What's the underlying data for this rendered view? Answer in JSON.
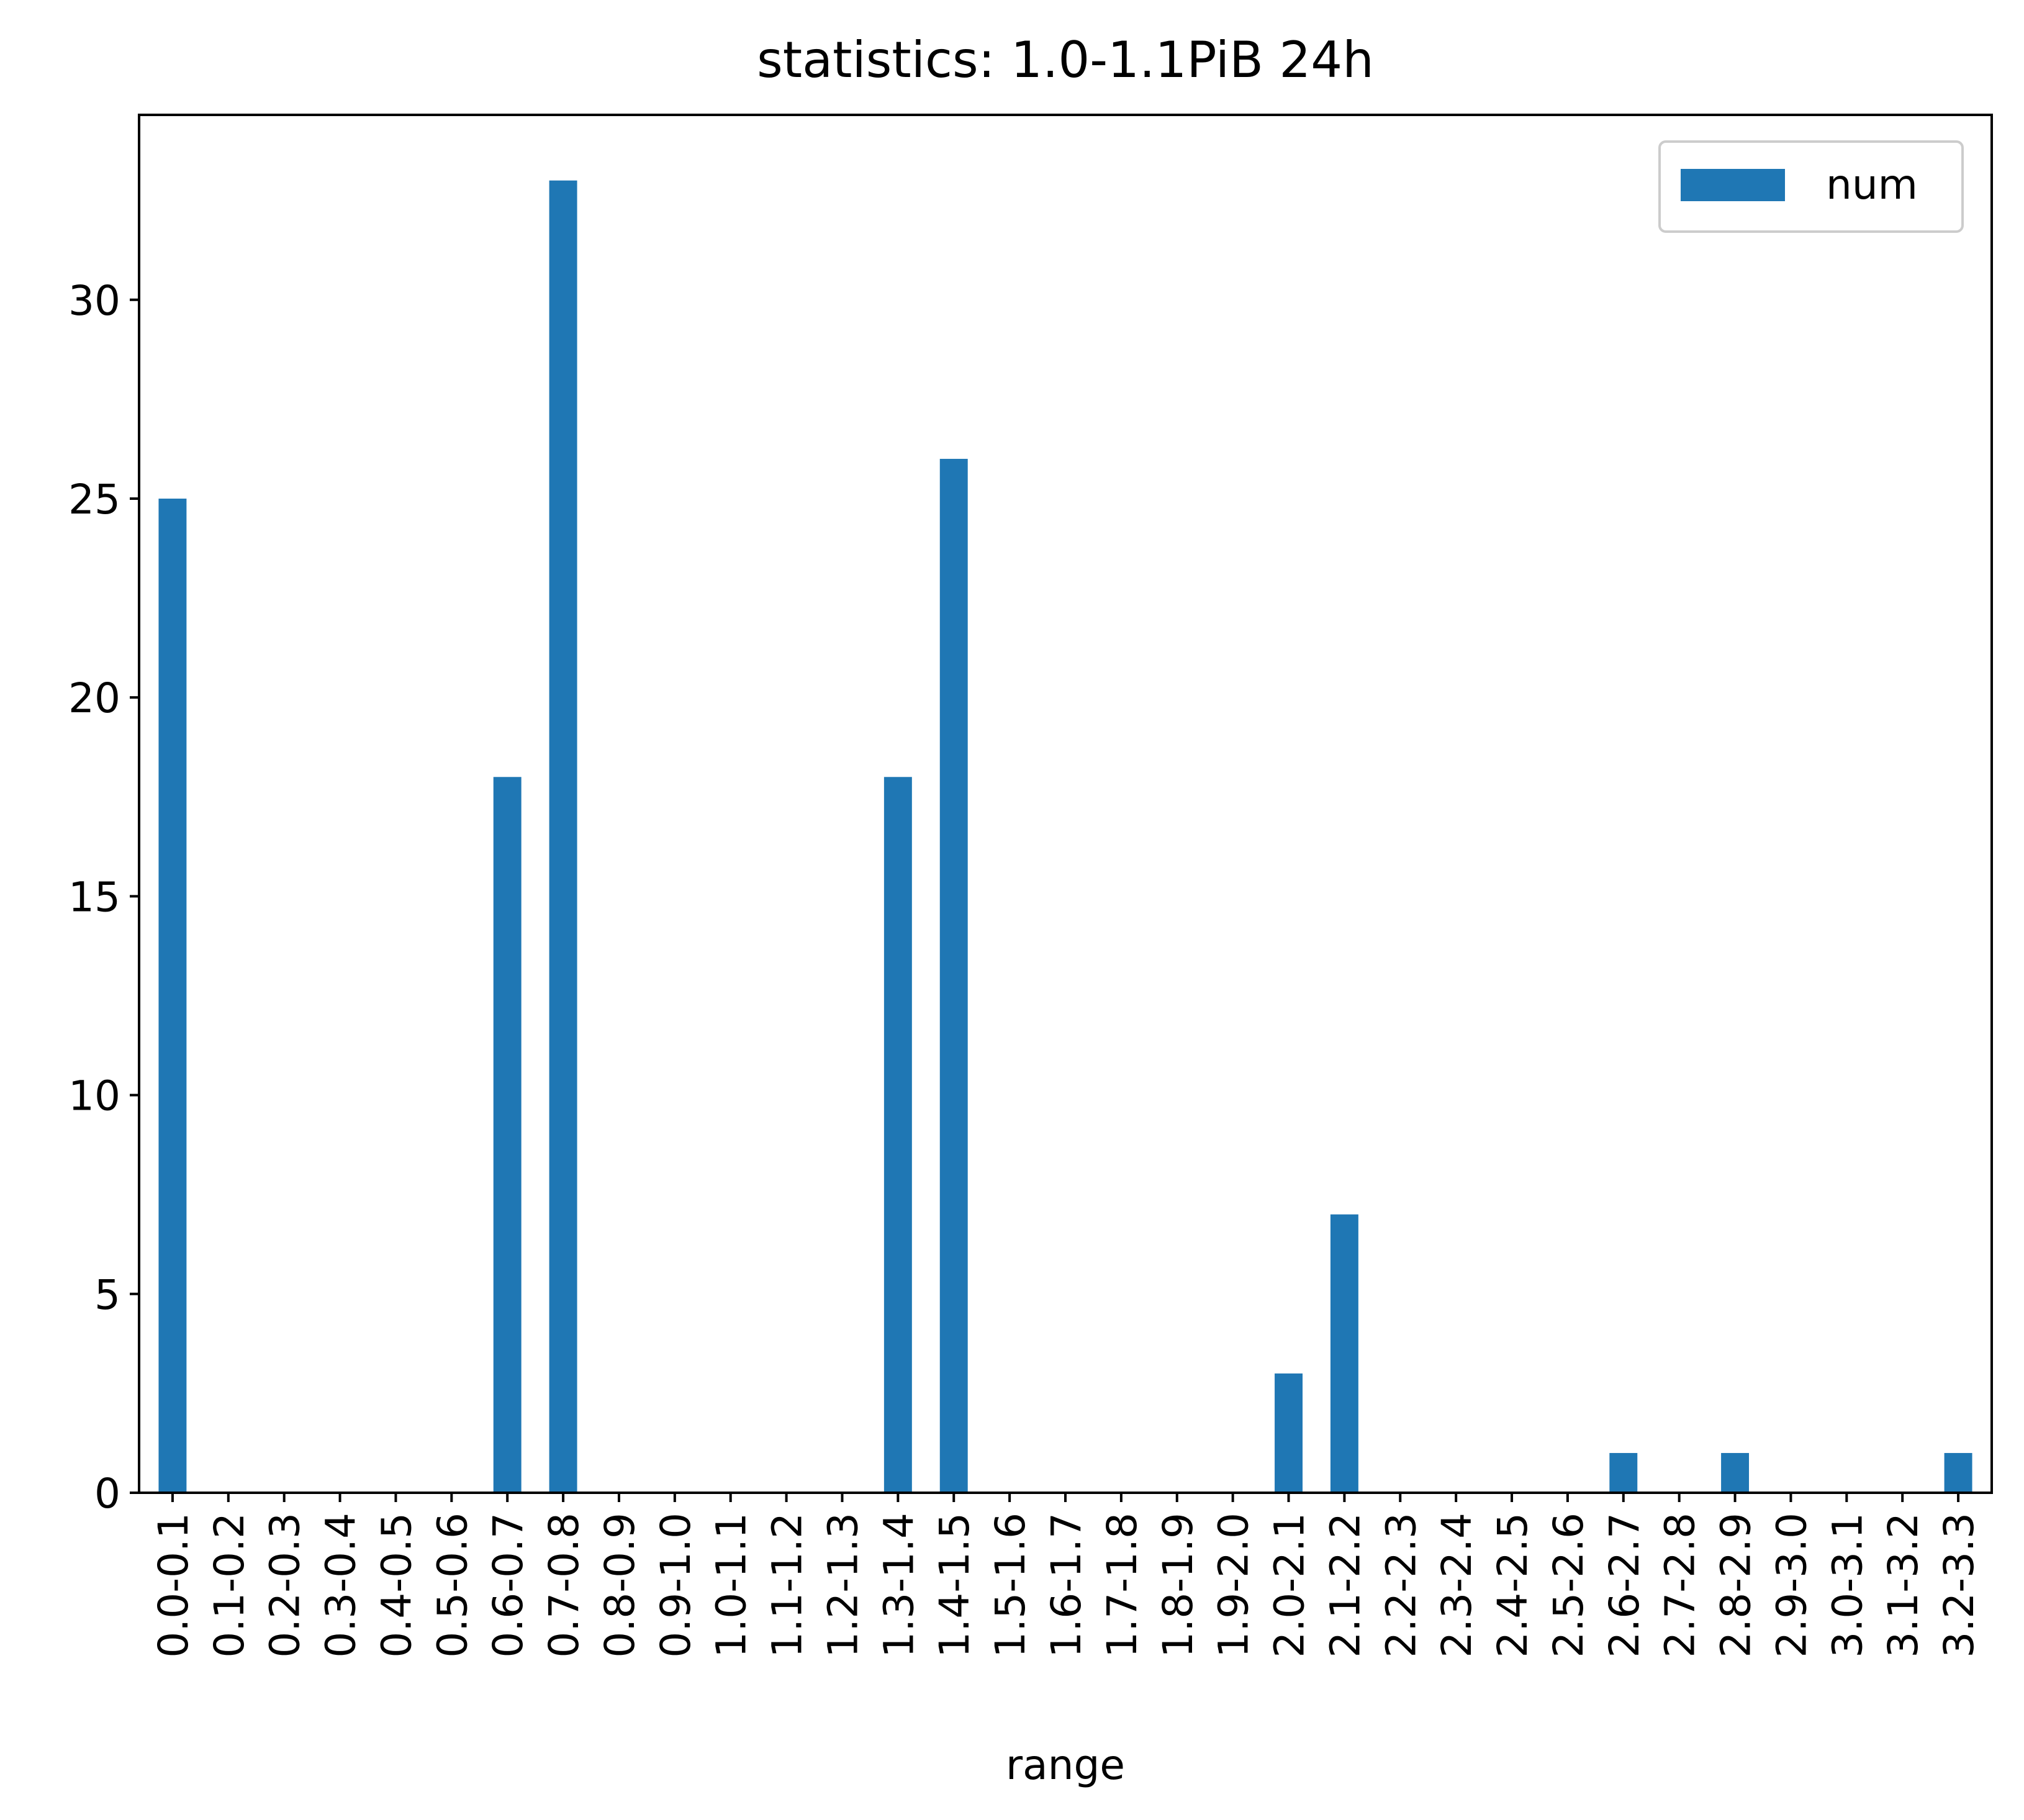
{
  "chart_data": {
    "type": "bar",
    "title": "statistics: 1.0-1.1PiB 24h",
    "xlabel": "range",
    "ylabel": "",
    "ylim": [
      0,
      34.65
    ],
    "yticks": [
      0,
      5,
      10,
      15,
      20,
      25,
      30
    ],
    "grid": false,
    "legend_position": "top-right",
    "categories": [
      "0.0-0.1",
      "0.1-0.2",
      "0.2-0.3",
      "0.3-0.4",
      "0.4-0.5",
      "0.5-0.6",
      "0.6-0.7",
      "0.7-0.8",
      "0.8-0.9",
      "0.9-1.0",
      "1.0-1.1",
      "1.1-1.2",
      "1.2-1.3",
      "1.3-1.4",
      "1.4-1.5",
      "1.5-1.6",
      "1.6-1.7",
      "1.7-1.8",
      "1.8-1.9",
      "1.9-2.0",
      "2.0-2.1",
      "2.1-2.2",
      "2.2-2.3",
      "2.3-2.4",
      "2.4-2.5",
      "2.5-2.6",
      "2.6-2.7",
      "2.7-2.8",
      "2.8-2.9",
      "2.9-3.0",
      "3.0-3.1",
      "3.1-3.2",
      "3.2-3.3"
    ],
    "series": [
      {
        "name": "num",
        "color": "#1f77b4",
        "values": [
          25,
          0,
          0,
          0,
          0,
          0,
          18,
          33,
          0,
          0,
          0,
          0,
          0,
          18,
          26,
          0,
          0,
          0,
          0,
          0,
          3,
          7,
          0,
          0,
          0,
          0,
          1,
          0,
          1,
          0,
          0,
          0,
          1
        ]
      }
    ]
  }
}
